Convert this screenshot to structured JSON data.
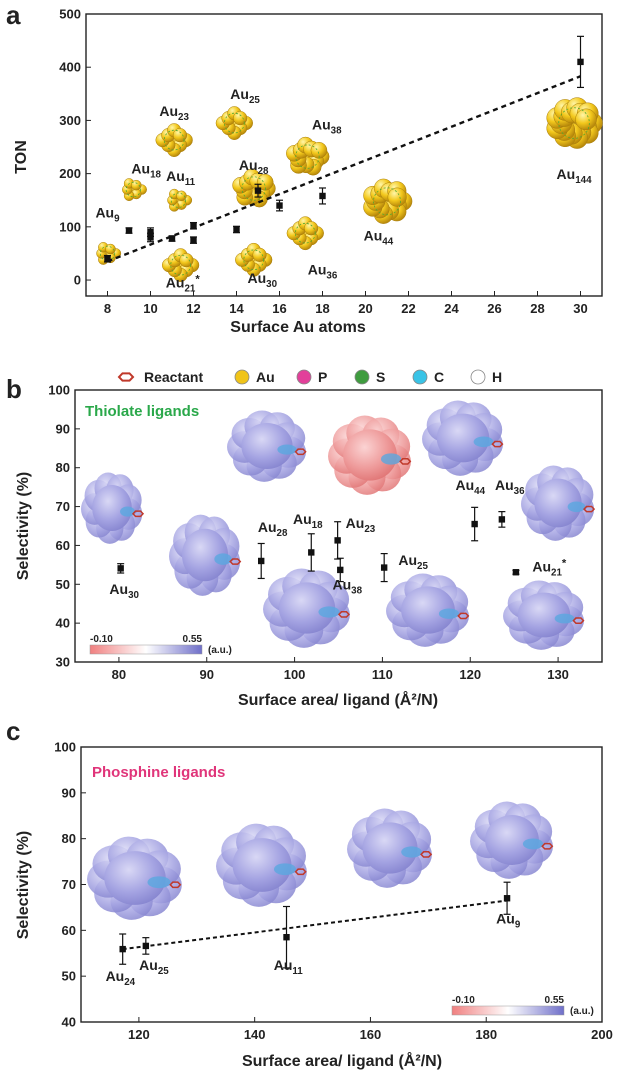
{
  "colors": {
    "au": "#f2c21a",
    "au_dark": "#b8860b",
    "ligand": "#4fa832",
    "surface": "#9c9be0",
    "surface_red": "#e87b7b",
    "reactant": "#c0392b",
    "gradient_low": "#f08080",
    "gradient_high": "#6f6fc9"
  },
  "chart_data": [
    {
      "panel_letter": "a",
      "type": "scatter",
      "xlabel": "Surface Au atoms",
      "ylabel": "TON",
      "xlim": [
        7,
        31
      ],
      "ylim": [
        -30,
        500
      ],
      "xticks": [
        8,
        10,
        12,
        14,
        16,
        18,
        20,
        22,
        24,
        26,
        28,
        30
      ],
      "yticks": [
        0,
        100,
        200,
        300,
        400,
        500
      ],
      "points": [
        {
          "x": 8,
          "y": 40,
          "err": 6
        },
        {
          "x": 9,
          "y": 93,
          "err": 5
        },
        {
          "x": 10,
          "y": 80,
          "err": 8
        },
        {
          "x": 10,
          "y": 90,
          "err": 8
        },
        {
          "x": 11,
          "y": 78,
          "err": 5
        },
        {
          "x": 12,
          "y": 75,
          "err": 6
        },
        {
          "x": 12,
          "y": 102,
          "err": 6
        },
        {
          "x": 14,
          "y": 95,
          "err": 6
        },
        {
          "x": 15,
          "y": 168,
          "err": 12
        },
        {
          "x": 16,
          "y": 140,
          "err": 10
        },
        {
          "x": 18,
          "y": 158,
          "err": 15
        },
        {
          "x": 30,
          "y": 410,
          "err": 48
        }
      ],
      "trend": {
        "x": [
          8,
          30
        ],
        "y": [
          35,
          383
        ]
      },
      "clusters": [
        {
          "name": "Au",
          "sub": "9",
          "x": 8,
          "y": 50,
          "lx": 8.0,
          "ly": 118,
          "size": "s"
        },
        {
          "name": "Au",
          "sub": "18",
          "x": 9.2,
          "y": 170,
          "lx": 9.8,
          "ly": 200,
          "size": "s"
        },
        {
          "name": "Au",
          "sub": "11",
          "x": 11.3,
          "y": 150,
          "lx": 11.4,
          "ly": 186,
          "size": "s"
        },
        {
          "name": "Au",
          "sub": "23",
          "x": 11.1,
          "y": 263,
          "lx": 11.1,
          "ly": 308,
          "size": "m"
        },
        {
          "name": "Au",
          "sub": "25",
          "x": 13.9,
          "y": 295,
          "lx": 14.4,
          "ly": 340,
          "size": "m"
        },
        {
          "name": "Au",
          "sub": "28",
          "x": 14.8,
          "y": 172,
          "lx": 14.8,
          "ly": 207,
          "size": "l"
        },
        {
          "name": "Au",
          "sub": "38",
          "x": 17.3,
          "y": 232,
          "lx": 18.2,
          "ly": 283,
          "size": "l"
        },
        {
          "name": "Au",
          "sub": "21",
          "sup": "*",
          "x": 11.4,
          "y": 28,
          "lx": 11.5,
          "ly": -14,
          "size": "m"
        },
        {
          "name": "Au",
          "sub": "30",
          "x": 14.8,
          "y": 38,
          "lx": 15.2,
          "ly": -6,
          "size": "m"
        },
        {
          "name": "Au",
          "sub": "36",
          "x": 17.2,
          "y": 88,
          "lx": 18.0,
          "ly": 10,
          "size": "m"
        },
        {
          "name": "Au",
          "sub": "44",
          "x": 21.0,
          "y": 148,
          "lx": 20.6,
          "ly": 74,
          "size": "xl"
        },
        {
          "name": "Au",
          "sub": "144",
          "x": 29.7,
          "y": 295,
          "lx": 29.7,
          "ly": 190,
          "size": "xxl"
        }
      ]
    },
    {
      "panel_letter": "b",
      "type": "scatter",
      "inset_title": "Thiolate ligands",
      "xlabel": "Surface area/ ligand (Å²/N)",
      "ylabel": "Selectivity (%)",
      "xlim": [
        75,
        135
      ],
      "ylim": [
        30,
        100
      ],
      "xticks": [
        80,
        90,
        100,
        110,
        120,
        130
      ],
      "yticks": [
        30,
        40,
        50,
        60,
        70,
        80,
        90,
        100
      ],
      "legend_items": [
        {
          "label": "Reactant",
          "kind": "reactant"
        },
        {
          "label": "Au",
          "color": "#f0c419"
        },
        {
          "label": "P",
          "color": "#e2409a"
        },
        {
          "label": "S",
          "color": "#3f9c3f"
        },
        {
          "label": "C",
          "color": "#39c3e6"
        },
        {
          "label": "H",
          "color": "#ffffff"
        }
      ],
      "points": [
        {
          "name": "Au",
          "sub": "30",
          "x": 80.2,
          "y": 54.1,
          "err": 1.2,
          "lx": 80.6,
          "ly": 47.5
        },
        {
          "name": "Au",
          "sub": "28",
          "x": 96.2,
          "y": 56.0,
          "err": 4.5,
          "lx": 97.5,
          "ly": 63.5
        },
        {
          "name": "Au",
          "sub": "18",
          "x": 101.9,
          "y": 58.2,
          "err": 4.8,
          "lx": 101.5,
          "ly": 65.5
        },
        {
          "name": "Au",
          "sub": "23",
          "x": 104.9,
          "y": 61.3,
          "err": 4.8,
          "lx": 107.5,
          "ly": 64.5
        },
        {
          "name": "Au",
          "sub": "38",
          "x": 105.2,
          "y": 53.7,
          "err": 3.0,
          "lx": 106.0,
          "ly": 48.7
        },
        {
          "name": "Au",
          "sub": "25",
          "x": 110.2,
          "y": 54.3,
          "err": 3.6,
          "lx": 113.5,
          "ly": 55.0
        },
        {
          "name": "Au",
          "sub": "44",
          "x": 120.5,
          "y": 65.5,
          "err": 4.3,
          "lx": 120.0,
          "ly": 74.3
        },
        {
          "name": "Au",
          "sub": "36",
          "x": 123.6,
          "y": 66.7,
          "err": 2.0,
          "lx": 124.5,
          "ly": 74.3
        },
        {
          "name": "Au",
          "sub": "21",
          "sup": "*",
          "x": 125.2,
          "y": 53.1,
          "err": 0.5,
          "lx": 129.0,
          "ly": 53.3
        }
      ],
      "colorbar": {
        "min_label": "-0.10",
        "max_label": "0.55",
        "unit": "(a.u.)"
      }
    },
    {
      "panel_letter": "c",
      "type": "scatter",
      "inset_title": "Phosphine ligands",
      "xlabel": "Surface area/ ligand (Å²/N)",
      "ylabel": "Selectivity (%)",
      "xlim": [
        110,
        200
      ],
      "ylim": [
        40,
        100
      ],
      "xticks": [
        120,
        140,
        160,
        180,
        200
      ],
      "yticks": [
        40,
        50,
        60,
        70,
        80,
        90,
        100
      ],
      "points": [
        {
          "name": "Au",
          "sub": "24",
          "x": 117.2,
          "y": 55.9,
          "err": 3.3,
          "lx": 116.8,
          "ly": 49.0
        },
        {
          "name": "Au",
          "sub": "25",
          "x": 121.2,
          "y": 56.6,
          "err": 1.8,
          "lx": 122.6,
          "ly": 51.3
        },
        {
          "name": "Au",
          "sub": "11",
          "x": 145.5,
          "y": 58.5,
          "err": 6.7,
          "lx": 145.8,
          "ly": 51.3
        },
        {
          "name": "Au",
          "sub": "9",
          "x": 183.6,
          "y": 67.0,
          "err": 3.5,
          "lx": 183.8,
          "ly": 61.5
        }
      ],
      "trend": {
        "x": [
          117.2,
          183.6
        ],
        "y": [
          55.9,
          66.5
        ]
      },
      "colorbar": {
        "min_label": "-0.10",
        "max_label": "0.55",
        "unit": "(a.u.)"
      }
    }
  ]
}
